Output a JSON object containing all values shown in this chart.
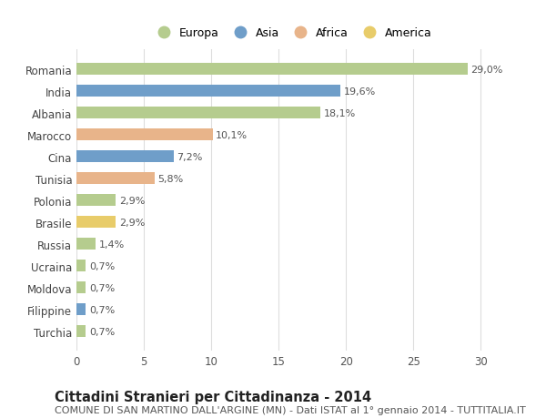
{
  "categories": [
    "Romania",
    "India",
    "Albania",
    "Marocco",
    "Cina",
    "Tunisia",
    "Polonia",
    "Brasile",
    "Russia",
    "Ucraina",
    "Moldova",
    "Filippine",
    "Turchia"
  ],
  "values": [
    29.0,
    19.6,
    18.1,
    10.1,
    7.2,
    5.8,
    2.9,
    2.9,
    1.4,
    0.7,
    0.7,
    0.7,
    0.7
  ],
  "labels": [
    "29,0%",
    "19,6%",
    "18,1%",
    "10,1%",
    "7,2%",
    "5,8%",
    "2,9%",
    "2,9%",
    "1,4%",
    "0,7%",
    "0,7%",
    "0,7%",
    "0,7%"
  ],
  "continents": [
    "Europa",
    "Asia",
    "Europa",
    "Africa",
    "Asia",
    "Africa",
    "Europa",
    "America",
    "Europa",
    "Europa",
    "Europa",
    "Asia",
    "Europa"
  ],
  "colors": {
    "Europa": "#b5cc8e",
    "Asia": "#6f9ec9",
    "Africa": "#e8b48a",
    "America": "#e8cc6a"
  },
  "legend_order": [
    "Europa",
    "Asia",
    "Africa",
    "America"
  ],
  "title": "Cittadini Stranieri per Cittadinanza - 2014",
  "subtitle": "COMUNE DI SAN MARTINO DALL'ARGINE (MN) - Dati ISTAT al 1° gennaio 2014 - TUTTITALIA.IT",
  "xlim": [
    0,
    32
  ],
  "xticks": [
    0,
    5,
    10,
    15,
    20,
    25,
    30
  ],
  "background_color": "#ffffff",
  "bar_height": 0.55,
  "title_fontsize": 10.5,
  "subtitle_fontsize": 8,
  "tick_fontsize": 8.5,
  "label_fontsize": 8,
  "legend_fontsize": 9
}
